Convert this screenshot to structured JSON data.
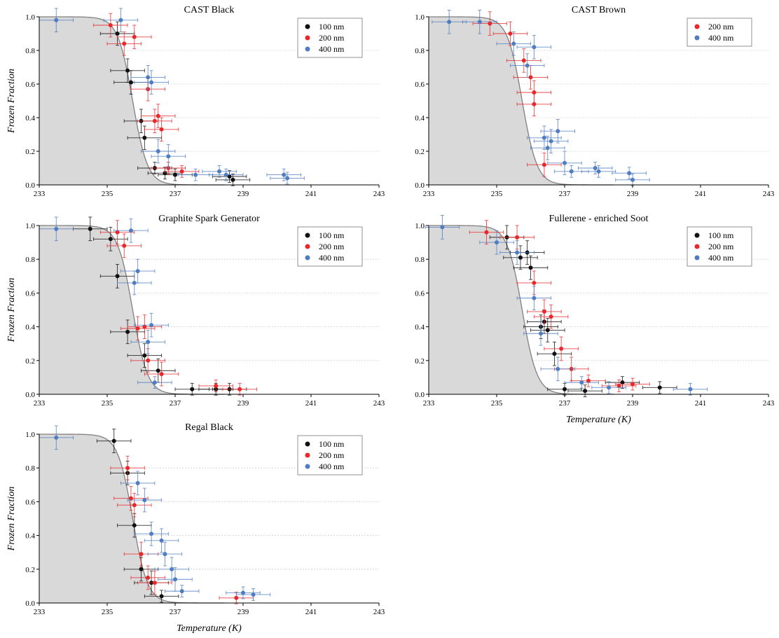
{
  "colors": {
    "s100": "#111111",
    "s200": "#e8282b",
    "s400": "#4f7dc0",
    "curve": "#808080",
    "shade": "#d9d9d9",
    "grid": "#cfcfcf"
  },
  "chart_data": [
    {
      "type": "scatter",
      "title": "CAST Black",
      "ylabel": "Frozen Fraction",
      "xlabel": "",
      "xlim": [
        233,
        243
      ],
      "ylim": [
        0,
        1
      ],
      "xticks": [
        "233",
        "235",
        "237",
        "239",
        "241",
        "243"
      ],
      "yticks": [
        "0.0",
        "0.2",
        "0.4",
        "0.6",
        "0.8",
        "1.0"
      ],
      "legend": "top-right",
      "series": [
        {
          "name": "100 nm",
          "color": "#111111",
          "points": [
            [
              235.3,
              0.9
            ],
            [
              235.6,
              0.68
            ],
            [
              235.7,
              0.61
            ],
            [
              236.0,
              0.38
            ],
            [
              236.1,
              0.28
            ],
            [
              236.4,
              0.1
            ],
            [
              236.7,
              0.07
            ],
            [
              237.0,
              0.06
            ],
            [
              238.6,
              0.05
            ],
            [
              238.7,
              0.03
            ]
          ]
        },
        {
          "name": "200 nm",
          "color": "#e8282b",
          "points": [
            [
              235.1,
              0.95
            ],
            [
              235.5,
              0.84
            ],
            [
              235.8,
              0.88
            ],
            [
              236.2,
              0.57
            ],
            [
              236.4,
              0.38
            ],
            [
              236.5,
              0.41
            ],
            [
              236.6,
              0.33
            ],
            [
              236.8,
              0.1
            ],
            [
              237.2,
              0.08
            ]
          ]
        },
        {
          "name": "400 nm",
          "color": "#4f7dc0",
          "points": [
            [
              233.5,
              0.98
            ],
            [
              235.4,
              0.98
            ],
            [
              236.2,
              0.64
            ],
            [
              236.3,
              0.61
            ],
            [
              236.5,
              0.2
            ],
            [
              236.8,
              0.17
            ],
            [
              237.6,
              0.06
            ],
            [
              238.3,
              0.08
            ],
            [
              238.5,
              0.06
            ],
            [
              240.2,
              0.06
            ],
            [
              240.3,
              0.04
            ]
          ]
        }
      ]
    },
    {
      "type": "scatter",
      "title": "CAST Brown",
      "ylabel": "",
      "xlabel": "",
      "xlim": [
        233,
        243
      ],
      "ylim": [
        0,
        1
      ],
      "xticks": [
        "233",
        "235",
        "237",
        "239",
        "241",
        "243"
      ],
      "yticks": [
        "0.0",
        "0.2",
        "0.4",
        "0.6",
        "0.8",
        "1.0"
      ],
      "legend": "top-right",
      "series": [
        {
          "name": "200 nm",
          "color": "#e8282b",
          "points": [
            [
              234.8,
              0.96
            ],
            [
              235.4,
              0.9
            ],
            [
              235.8,
              0.74
            ],
            [
              236.0,
              0.64
            ],
            [
              236.1,
              0.55
            ],
            [
              236.1,
              0.48
            ],
            [
              236.4,
              0.12
            ]
          ]
        },
        {
          "name": "400 nm",
          "color": "#4f7dc0",
          "points": [
            [
              233.6,
              0.97
            ],
            [
              234.5,
              0.97
            ],
            [
              235.5,
              0.84
            ],
            [
              235.9,
              0.71
            ],
            [
              236.1,
              0.82
            ],
            [
              236.4,
              0.28
            ],
            [
              236.5,
              0.22
            ],
            [
              236.6,
              0.26
            ],
            [
              236.8,
              0.32
            ],
            [
              237.0,
              0.13
            ],
            [
              237.2,
              0.08
            ],
            [
              237.9,
              0.1
            ],
            [
              238.0,
              0.08
            ],
            [
              238.9,
              0.07
            ],
            [
              239.0,
              0.03
            ]
          ]
        }
      ]
    },
    {
      "type": "scatter",
      "title": "Graphite Spark Generator",
      "ylabel": "Frozen Fraction",
      "xlabel": "",
      "xlim": [
        233,
        243
      ],
      "ylim": [
        0,
        1
      ],
      "xticks": [
        "233",
        "235",
        "237",
        "239",
        "241",
        "243"
      ],
      "yticks": [
        "0.0",
        "0.2",
        "0.4",
        "0.6",
        "0.8",
        "1.0"
      ],
      "legend": "top-right",
      "series": [
        {
          "name": "100 nm",
          "color": "#111111",
          "points": [
            [
              234.5,
              0.98
            ],
            [
              235.1,
              0.92
            ],
            [
              235.3,
              0.7
            ],
            [
              235.6,
              0.37
            ],
            [
              236.1,
              0.23
            ],
            [
              236.5,
              0.14
            ],
            [
              237.5,
              0.03
            ],
            [
              238.2,
              0.03
            ],
            [
              238.6,
              0.03
            ]
          ]
        },
        {
          "name": "200 nm",
          "color": "#e8282b",
          "points": [
            [
              235.3,
              0.96
            ],
            [
              235.5,
              0.88
            ],
            [
              235.9,
              0.39
            ],
            [
              236.1,
              0.4
            ],
            [
              236.2,
              0.2
            ],
            [
              236.6,
              0.12
            ],
            [
              238.2,
              0.05
            ],
            [
              238.9,
              0.03
            ]
          ]
        },
        {
          "name": "400 nm",
          "color": "#4f7dc0",
          "points": [
            [
              233.5,
              0.98
            ],
            [
              235.7,
              0.97
            ],
            [
              235.9,
              0.73
            ],
            [
              235.8,
              0.66
            ],
            [
              236.2,
              0.31
            ],
            [
              236.3,
              0.41
            ],
            [
              236.4,
              0.07
            ]
          ]
        }
      ]
    },
    {
      "type": "scatter",
      "title": "Fullerene - enriched Soot",
      "ylabel": "",
      "xlabel": "Temperature (K)",
      "xlim": [
        233,
        243
      ],
      "ylim": [
        0,
        1
      ],
      "xticks": [
        "233",
        "235",
        "237",
        "239",
        "241",
        "243"
      ],
      "yticks": [
        "0.0",
        "0.2",
        "0.4",
        "0.6",
        "0.8",
        "1.0"
      ],
      "legend": "top-right",
      "series": [
        {
          "name": "100 nm",
          "color": "#111111",
          "points": [
            [
              235.3,
              0.93
            ],
            [
              235.7,
              0.81
            ],
            [
              235.9,
              0.84
            ],
            [
              236.0,
              0.75
            ],
            [
              236.3,
              0.4
            ],
            [
              236.4,
              0.43
            ],
            [
              236.5,
              0.38
            ],
            [
              236.7,
              0.24
            ],
            [
              237.0,
              0.03
            ],
            [
              237.6,
              0.02
            ],
            [
              238.7,
              0.07
            ],
            [
              239.8,
              0.04
            ]
          ]
        },
        {
          "name": "200 nm",
          "color": "#e8282b",
          "points": [
            [
              234.7,
              0.96
            ],
            [
              235.6,
              0.93
            ],
            [
              236.1,
              0.66
            ],
            [
              236.4,
              0.49
            ],
            [
              236.6,
              0.46
            ],
            [
              236.9,
              0.27
            ],
            [
              237.2,
              0.15
            ],
            [
              237.7,
              0.08
            ],
            [
              238.6,
              0.05
            ],
            [
              239.0,
              0.06
            ]
          ]
        },
        {
          "name": "400 nm",
          "color": "#4f7dc0",
          "points": [
            [
              233.4,
              0.99
            ],
            [
              235.0,
              0.9
            ],
            [
              235.6,
              0.84
            ],
            [
              236.1,
              0.57
            ],
            [
              236.3,
              0.36
            ],
            [
              236.8,
              0.15
            ],
            [
              237.5,
              0.07
            ],
            [
              238.3,
              0.04
            ],
            [
              240.7,
              0.03
            ]
          ]
        }
      ]
    },
    {
      "type": "scatter",
      "title": "Regal Black",
      "ylabel": "Frozen Fraction",
      "xlabel": "Temperature (K)",
      "xlim": [
        233,
        243
      ],
      "ylim": [
        0,
        1
      ],
      "xticks": [
        "233",
        "235",
        "237",
        "239",
        "241",
        "243"
      ],
      "yticks": [
        "0.0",
        "0.2",
        "0.4",
        "0.6",
        "0.8",
        "1.0"
      ],
      "legend": "top-right",
      "series": [
        {
          "name": "100 nm",
          "color": "#111111",
          "points": [
            [
              235.2,
              0.96
            ],
            [
              235.6,
              0.77
            ],
            [
              235.8,
              0.46
            ],
            [
              236.0,
              0.2
            ],
            [
              236.3,
              0.12
            ],
            [
              236.6,
              0.04
            ]
          ]
        },
        {
          "name": "200 nm",
          "color": "#e8282b",
          "points": [
            [
              235.6,
              0.8
            ],
            [
              235.7,
              0.62
            ],
            [
              235.8,
              0.58
            ],
            [
              236.0,
              0.29
            ],
            [
              236.2,
              0.15
            ],
            [
              236.4,
              0.12
            ],
            [
              238.8,
              0.03
            ]
          ]
        },
        {
          "name": "400 nm",
          "color": "#4f7dc0",
          "points": [
            [
              233.5,
              0.98
            ],
            [
              235.9,
              0.71
            ],
            [
              236.1,
              0.61
            ],
            [
              236.3,
              0.41
            ],
            [
              236.6,
              0.37
            ],
            [
              236.7,
              0.29
            ],
            [
              236.9,
              0.2
            ],
            [
              237.0,
              0.14
            ],
            [
              237.2,
              0.07
            ],
            [
              239.0,
              0.06
            ],
            [
              239.3,
              0.05
            ]
          ]
        }
      ]
    }
  ]
}
